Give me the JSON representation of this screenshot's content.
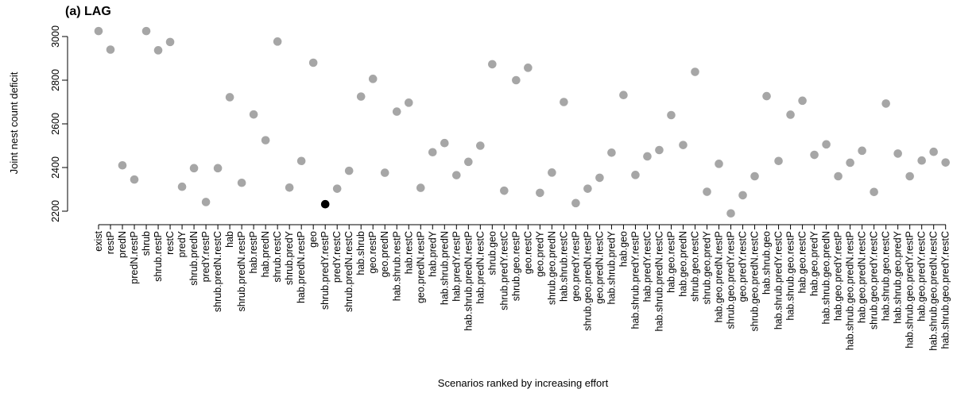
{
  "chart_data": {
    "type": "scatter",
    "title": "(a) LAG",
    "xlabel": "Scenarios ranked by increasing effort",
    "ylabel": "Joint nest count deficit",
    "ylim": [
      2200,
      3000
    ],
    "yticks": [
      2200,
      2400,
      2600,
      2800,
      3000
    ],
    "grid": false,
    "point_color": "#a6a6a6",
    "highlight_color": "#000000",
    "highlight": "shrub.predY.restP",
    "categories": [
      "exist",
      "restP",
      "predN",
      "predN.restP",
      "shrub",
      "shrub.restP",
      "restC",
      "predY",
      "shrub.predN",
      "predY.restP",
      "shrub.predN.restC",
      "hab",
      "shrub.predN.restP",
      "hab.restP",
      "hab.predN",
      "shrub.restC",
      "shrub.predY",
      "hab.predN.restP",
      "geo",
      "shrub.predY.restP",
      "predY.restC",
      "shrub.predN.restC",
      "hab.shrub",
      "geo.restP",
      "geo.predN",
      "hab.shrub.restP",
      "hab.restC",
      "geo.predN.restP",
      "hab.predY",
      "hab.shrub.predN",
      "hab.predY.restP",
      "hab.shrub.predN.restP",
      "hab.predN.restC",
      "shrub.geo",
      "shrub.predY.restC",
      "shrub.geo.restP",
      "geo.restC",
      "geo.predY",
      "shrub.geo.predN",
      "hab.shrub.restC",
      "geo.predY.restP",
      "shrub.geo.predN.restP",
      "geo.predN.restC",
      "hab.shrub.predY",
      "hab.geo",
      "hab.shrub.predY.restP",
      "hab.predY.restC",
      "hab.shrub.predN.restC",
      "hab.geo.restP",
      "hab.geo.predN",
      "shrub.geo.restC",
      "shrub.geo.predY",
      "hab.geo.predN.restP",
      "shrub.geo.predY.restP",
      "geo.predY.restC",
      "shrub.geo.predN.restC",
      "hab.shrub.geo",
      "hab.shrub.predY.restC",
      "hab.shrub.geo.restP",
      "hab.geo.restC",
      "hab.geo.predY",
      "hab.shrub.geo.predN",
      "hab.geo.predY.restP",
      "hab.shrub.geo.predN.restP",
      "hab.geo.predN.restC",
      "shrub.geo.predY.restC",
      "hab.shrub.geo.restC",
      "hab.shrub.geo.predY",
      "hab.shrub.geo.predY.restP",
      "hab.geo.predY.restC",
      "hab.shrub.geo.predN.restC",
      "hab.shrub.geo.predY.restC"
    ],
    "values": [
      3025,
      2940,
      2410,
      2345,
      3025,
      2937,
      2975,
      2312,
      2397,
      2242,
      2397,
      2722,
      2330,
      2643,
      2525,
      2977,
      2308,
      2430,
      2880,
      2232,
      2303,
      2385,
      2725,
      2806,
      2376,
      2656,
      2697,
      2307,
      2470,
      2512,
      2365,
      2426,
      2500,
      2873,
      2294,
      2800,
      2857,
      2284,
      2377,
      2700,
      2237,
      2303,
      2353,
      2468,
      2732,
      2366,
      2451,
      2480,
      2640,
      2503,
      2838,
      2289,
      2417,
      2190,
      2273,
      2360,
      2727,
      2430,
      2642,
      2706,
      2458,
      2506,
      2360,
      2422,
      2477,
      2288,
      2693,
      2464,
      2360,
      2432,
      2472,
      2423
    ]
  }
}
